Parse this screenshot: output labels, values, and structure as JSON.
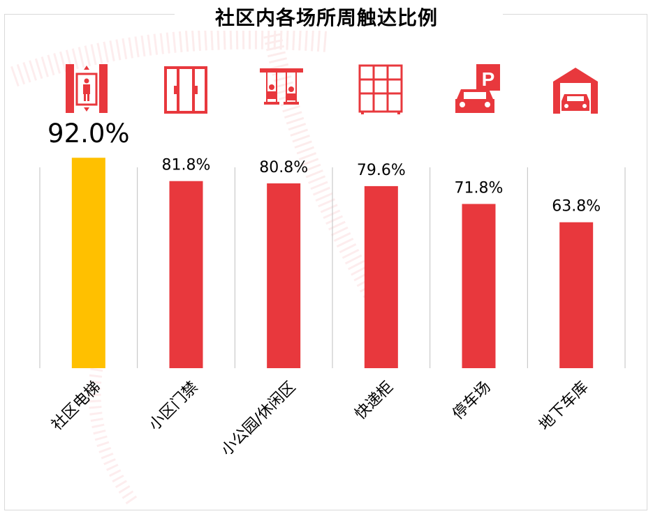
{
  "chart_data": {
    "type": "bar",
    "title": "社区内各场所周触达比例",
    "categories": [
      "社区电梯",
      "小区门禁",
      "小公园/休闲区",
      "快递柜",
      "停车场",
      "地下车库"
    ],
    "values": [
      92.0,
      81.8,
      80.8,
      79.6,
      71.8,
      63.8
    ],
    "labels": [
      "92.0%",
      "81.8%",
      "80.8%",
      "79.6%",
      "71.8%",
      "63.8%"
    ],
    "ylim": [
      0,
      100
    ],
    "unit": "%",
    "grid": "vertical separators between categories",
    "legend": "none",
    "icons": [
      "elevator-icon",
      "gate-icon",
      "swing-icon",
      "locker-icon",
      "parking-icon",
      "garage-icon"
    ]
  },
  "colors": {
    "highlight": "#FFC000",
    "bar": "#E8383D",
    "icon": "#E8383D",
    "text": "#000000",
    "separator": "#bfbfbf"
  }
}
